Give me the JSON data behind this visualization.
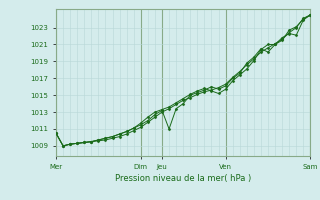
{
  "background_color": "#d4ecec",
  "grid_color_minor": "#b8d8d8",
  "grid_color_major": "#88aa88",
  "line_color": "#1a6b1a",
  "ylabel_values": [
    1009,
    1011,
    1013,
    1015,
    1017,
    1019,
    1021,
    1023
  ],
  "ylim": [
    1007.8,
    1025.2
  ],
  "xlabel": "Pression niveau de la mer( hPa )",
  "total_hours": 288,
  "major_xticks": [
    0,
    96,
    120,
    192,
    288
  ],
  "major_xlabels": [
    "Mer",
    "Dim",
    "Jeu",
    "Ven",
    "Sam"
  ],
  "series": [
    [
      1010.5,
      1009.0,
      1009.2,
      1009.3,
      1009.4,
      1009.5,
      1009.6,
      1009.7,
      1009.9,
      1010.1,
      1010.4,
      1010.8,
      1011.2,
      1011.8,
      1012.4,
      1013.0,
      1013.4,
      1013.9,
      1014.4,
      1014.7,
      1015.1,
      1015.4,
      1015.6,
      1015.9,
      1016.3,
      1017.1,
      1017.8,
      1018.6,
      1019.3,
      1020.1,
      1020.6,
      1021.1,
      1021.6,
      1022.4,
      1023.0,
      1024.1,
      1024.5
    ],
    [
      1010.5,
      1009.0,
      1009.2,
      1009.3,
      1009.4,
      1009.5,
      1009.7,
      1009.9,
      1010.1,
      1010.4,
      1010.7,
      1011.1,
      1011.7,
      1012.4,
      1013.0,
      1013.3,
      1013.6,
      1014.1,
      1014.6,
      1015.1,
      1015.5,
      1015.8,
      1015.5,
      1015.2,
      1015.7,
      1016.7,
      1017.4,
      1018.1,
      1019.1,
      1020.4,
      1021.0,
      1021.0,
      1021.8,
      1022.3,
      1022.1,
      1023.9,
      1024.5
    ],
    [
      1010.5,
      1009.0,
      1009.2,
      1009.3,
      1009.4,
      1009.5,
      1009.7,
      1009.9,
      1010.1,
      1010.4,
      1010.7,
      1011.1,
      1011.5,
      1012.0,
      1012.7,
      1013.2,
      1011.0,
      1013.4,
      1014.0,
      1015.0,
      1015.3,
      1015.6,
      1016.0,
      1015.7,
      1016.1,
      1017.0,
      1017.6,
      1018.8,
      1019.5,
      1020.5,
      1020.1,
      1021.0,
      1021.5,
      1022.7,
      1023.1,
      1024.0,
      1024.5
    ]
  ],
  "x_hours": [
    0,
    8,
    16,
    24,
    32,
    40,
    48,
    56,
    64,
    72,
    80,
    88,
    96,
    104,
    112,
    120,
    128,
    136,
    144,
    152,
    160,
    168,
    176,
    184,
    192,
    200,
    208,
    216,
    224,
    232,
    240,
    248,
    256,
    264,
    272,
    280,
    288
  ]
}
